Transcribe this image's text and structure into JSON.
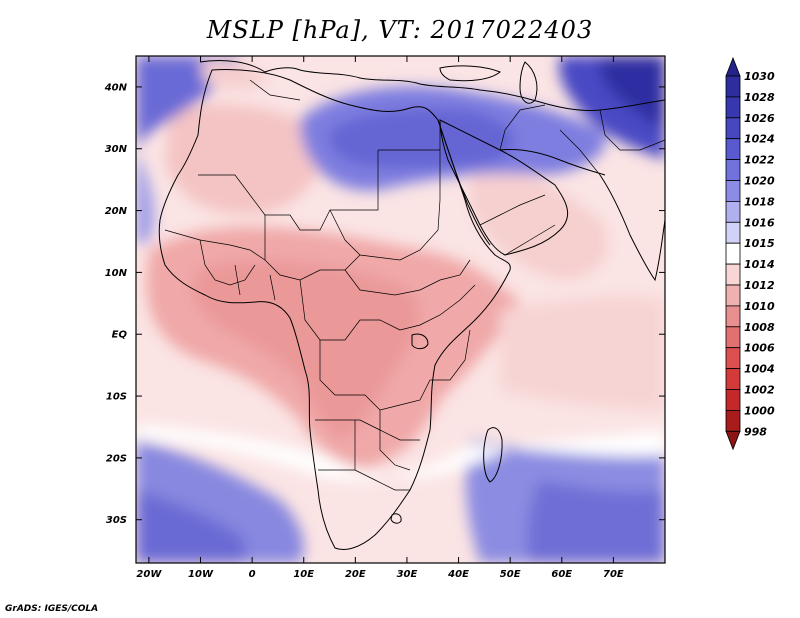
{
  "title": "MSLP [hPa], VT: 2017022403",
  "credit": "GrADS: IGES/COLA",
  "map": {
    "lat_labels": [
      "40N",
      "30N",
      "20N",
      "10N",
      "EQ",
      "10S",
      "20S",
      "30S"
    ],
    "lon_labels": [
      "20W",
      "10W",
      "0",
      "10E",
      "20E",
      "30E",
      "40E",
      "50E",
      "60E",
      "70E"
    ],
    "lat_values": [
      40,
      30,
      20,
      10,
      0,
      -10,
      -20,
      -30
    ],
    "lon_values": [
      -20,
      -10,
      0,
      10,
      20,
      30,
      40,
      50,
      60,
      70
    ],
    "lon_range": [
      -22.5,
      80
    ],
    "lat_range": [
      -37,
      45
    ]
  },
  "colorbar": {
    "levels": [
      "1030",
      "1028",
      "1026",
      "1024",
      "1022",
      "1020",
      "1018",
      "1016",
      "1015",
      "1014",
      "1012",
      "1010",
      "1008",
      "1006",
      "1004",
      "1002",
      "1000",
      "998"
    ],
    "colors": [
      "#23238c",
      "#2d2d9e",
      "#3737b0",
      "#4747c2",
      "#5a5ad0",
      "#7272dc",
      "#8c8ce6",
      "#b0b0f0",
      "#d2d2f8",
      "#ffffff",
      "#f8d6d6",
      "#f0b0b0",
      "#e89090",
      "#e27070",
      "#dc5050",
      "#d43a3a",
      "#c42828",
      "#a81c1c",
      "#8c1414"
    ]
  }
}
